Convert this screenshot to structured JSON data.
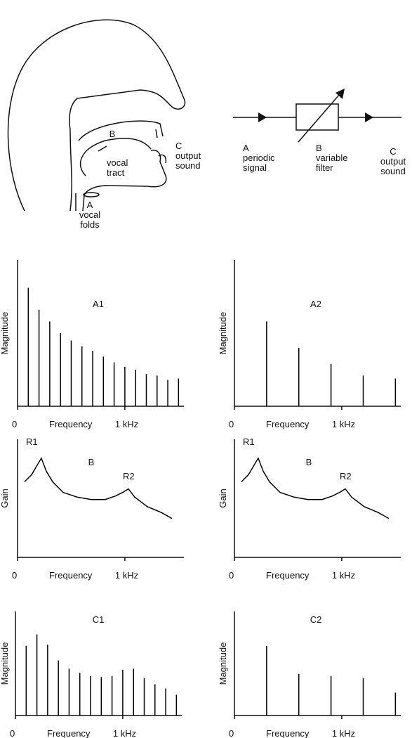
{
  "diagram": {
    "head_labels": [
      [
        "B"
      ],
      [
        "vocal",
        "tract"
      ],
      [
        "C",
        "output",
        "sound"
      ],
      [
        "A",
        "vocal",
        "folds"
      ]
    ],
    "block_labels": [
      [
        "A",
        "periodic",
        "signal"
      ],
      [
        "B",
        "variable",
        "filter"
      ],
      [
        "C",
        "output",
        "sound"
      ]
    ]
  },
  "chart_data": [
    {
      "type": "stem",
      "title": "A1",
      "xlabel": "Frequency",
      "ylabel": "Magnitude",
      "x": [
        100,
        200,
        300,
        400,
        500,
        600,
        700,
        800,
        900,
        1000,
        1100,
        1200,
        1300,
        1400,
        1500
      ],
      "values": [
        81,
        66,
        58,
        50,
        45,
        41,
        38,
        34,
        30,
        27,
        25,
        22,
        21,
        18,
        19
      ],
      "xlim": [
        0,
        1550
      ],
      "ylim": [
        0,
        100
      ],
      "xticks": [
        0,
        {
          "value": 1000,
          "label": "1 kHz"
        }
      ],
      "color": "#000000"
    },
    {
      "type": "stem",
      "title": "A2",
      "xlabel": "Frequency",
      "ylabel": "Magnitude",
      "x": [
        300,
        600,
        900,
        1200,
        1500
      ],
      "values": [
        58,
        40,
        29,
        21,
        19
      ],
      "xlim": [
        0,
        1550
      ],
      "ylim": [
        0,
        100
      ],
      "xticks": [
        0,
        {
          "value": 1000,
          "label": "1 kHz"
        }
      ],
      "color": "#000000"
    },
    {
      "type": "line",
      "title": "B",
      "xlabel": "Frequency",
      "ylabel": "Gain",
      "annotations": [
        "R1",
        "R2"
      ],
      "x": [
        65,
        131,
        176,
        222,
        268,
        327,
        425,
        556,
        686,
        817,
        915,
        980,
        1033,
        1092,
        1209,
        1340,
        1438
      ],
      "values": [
        64,
        70,
        77,
        84,
        73,
        64,
        55,
        51,
        49,
        49,
        52,
        55,
        58,
        51,
        43,
        38,
        33
      ],
      "xlim": [
        0,
        1550
      ],
      "ylim": [
        0,
        100
      ],
      "xticks": [
        0,
        {
          "value": 1000,
          "label": "1 kHz"
        }
      ],
      "color": "#000000"
    },
    {
      "type": "line",
      "title": "B",
      "xlabel": "Frequency",
      "ylabel": "Gain",
      "annotations": [
        "R1",
        "R2"
      ],
      "x": [
        65,
        131,
        176,
        222,
        268,
        327,
        425,
        556,
        686,
        817,
        915,
        980,
        1033,
        1092,
        1209,
        1340,
        1438
      ],
      "values": [
        64,
        70,
        77,
        84,
        73,
        64,
        55,
        51,
        49,
        49,
        52,
        55,
        58,
        51,
        43,
        38,
        33
      ],
      "xlim": [
        0,
        1550
      ],
      "ylim": [
        0,
        100
      ],
      "xticks": [
        0,
        {
          "value": 1000,
          "label": "1 kHz"
        }
      ],
      "color": "#000000"
    },
    {
      "type": "stem",
      "title": "C1",
      "xlabel": "Frequency",
      "ylabel": "Magnitude",
      "x": [
        100,
        200,
        300,
        400,
        500,
        600,
        700,
        800,
        900,
        1000,
        1100,
        1200,
        1300,
        1400,
        1500
      ],
      "values": [
        67,
        78,
        68,
        53,
        45,
        41,
        38,
        37,
        38,
        44,
        45,
        36,
        30,
        26,
        20
      ],
      "xlim": [
        0,
        1550
      ],
      "ylim": [
        0,
        100
      ],
      "xticks": [
        0,
        {
          "value": 1000,
          "label": "1 kHz"
        }
      ],
      "color": "#000000"
    },
    {
      "type": "stem",
      "title": "C2",
      "xlabel": "Frequency",
      "ylabel": "Magnitude",
      "x": [
        300,
        600,
        900,
        1200,
        1500
      ],
      "values": [
        67,
        40,
        38,
        36,
        22
      ],
      "xlim": [
        0,
        1550
      ],
      "ylim": [
        0,
        100
      ],
      "xticks": [
        0,
        {
          "value": 1000,
          "label": "1 kHz"
        }
      ],
      "color": "#000000"
    }
  ]
}
